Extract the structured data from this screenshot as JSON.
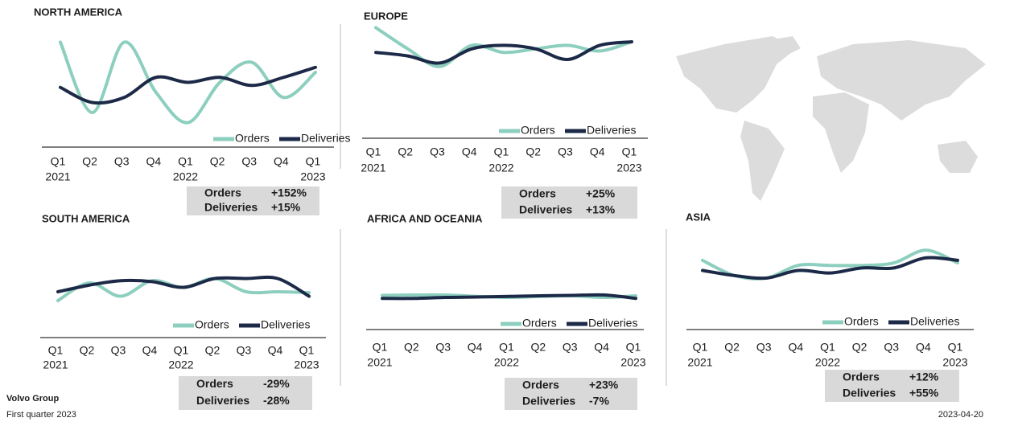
{
  "chart_data": [
    {
      "type": "line",
      "title": "NORTH AMERICA",
      "categories": [
        "Q1",
        "Q2",
        "Q3",
        "Q4",
        "Q1",
        "Q2",
        "Q3",
        "Q4",
        "Q1"
      ],
      "years": [
        "2021",
        null,
        null,
        null,
        "2022",
        null,
        null,
        null,
        "2023"
      ],
      "series": [
        {
          "name": "Orders",
          "color": "#8dcfbf",
          "values": [
            90,
            20,
            90,
            40,
            10,
            50,
            70,
            35,
            60
          ]
        },
        {
          "name": "Deliveries",
          "color": "#1c2a48",
          "values": [
            45,
            30,
            35,
            55,
            50,
            55,
            47,
            55,
            65
          ]
        }
      ],
      "summary": [
        {
          "label": "Orders",
          "value": "+152%"
        },
        {
          "label": "Deliveries",
          "value": "+15%"
        }
      ]
    },
    {
      "type": "line",
      "title": "EUROPE",
      "categories": [
        "Q1",
        "Q2",
        "Q3",
        "Q4",
        "Q1",
        "Q2",
        "Q3",
        "Q4",
        "Q1"
      ],
      "years": [
        "2021",
        null,
        null,
        null,
        "2022",
        null,
        null,
        null,
        "2023"
      ],
      "series": [
        {
          "name": "Orders",
          "color": "#8dcfbf",
          "values": [
            95,
            65,
            40,
            70,
            60,
            65,
            70,
            62,
            75
          ]
        },
        {
          "name": "Deliveries",
          "color": "#1c2a48",
          "values": [
            60,
            55,
            45,
            65,
            70,
            65,
            50,
            70,
            75
          ]
        }
      ],
      "summary": [
        {
          "label": "Orders",
          "value": "+25%"
        },
        {
          "label": "Deliveries",
          "value": "+13%"
        }
      ]
    },
    {
      "type": "line",
      "title": "SOUTH AMERICA",
      "categories": [
        "Q1",
        "Q2",
        "Q3",
        "Q4",
        "Q1",
        "Q2",
        "Q3",
        "Q4",
        "Q1"
      ],
      "years": [
        "2021",
        null,
        null,
        null,
        "2022",
        null,
        null,
        null,
        "2023"
      ],
      "series": [
        {
          "name": "Orders",
          "color": "#8dcfbf",
          "values": [
            20,
            60,
            30,
            65,
            50,
            70,
            40,
            40,
            38
          ]
        },
        {
          "name": "Deliveries",
          "color": "#1c2a48",
          "values": [
            40,
            55,
            65,
            63,
            50,
            70,
            70,
            70,
            30
          ]
        }
      ],
      "summary": [
        {
          "label": "Orders",
          "value": "-29%"
        },
        {
          "label": "Deliveries",
          "value": "-28%"
        }
      ]
    },
    {
      "type": "line",
      "title": "AFRICA AND OCEANIA",
      "categories": [
        "Q1",
        "Q2",
        "Q3",
        "Q4",
        "Q1",
        "Q2",
        "Q3",
        "Q4",
        "Q1"
      ],
      "years": [
        "2021",
        null,
        null,
        null,
        "2022",
        null,
        null,
        null,
        "2023"
      ],
      "series": [
        {
          "name": "Orders",
          "color": "#8dcfbf",
          "values": [
            50,
            52,
            52,
            45,
            40,
            45,
            48,
            40,
            48
          ]
        },
        {
          "name": "Deliveries",
          "color": "#1c2a48",
          "values": [
            35,
            35,
            40,
            42,
            45,
            48,
            50,
            52,
            35
          ]
        }
      ],
      "summary": [
        {
          "label": "Orders",
          "value": "+23%"
        },
        {
          "label": "Deliveries",
          "value": "-7%"
        }
      ]
    },
    {
      "type": "line",
      "title": "ASIA",
      "categories": [
        "Q1",
        "Q2",
        "Q3",
        "Q4",
        "Q1",
        "Q2",
        "Q3",
        "Q4",
        "Q1"
      ],
      "years": [
        "2021",
        null,
        null,
        null,
        "2022",
        null,
        null,
        null,
        "2023"
      ],
      "series": [
        {
          "name": "Orders",
          "color": "#8dcfbf",
          "values": [
            70,
            40,
            35,
            60,
            60,
            60,
            65,
            90,
            65
          ]
        },
        {
          "name": "Deliveries",
          "color": "#1c2a48",
          "values": [
            50,
            40,
            35,
            50,
            45,
            55,
            55,
            75,
            70
          ]
        }
      ],
      "summary": [
        {
          "label": "Orders",
          "value": "+12%"
        },
        {
          "label": "Deliveries",
          "value": "+55%"
        }
      ]
    }
  ],
  "footer": {
    "company": "Volvo Group",
    "period": "First quarter 2023",
    "date": "2023-04-20"
  }
}
